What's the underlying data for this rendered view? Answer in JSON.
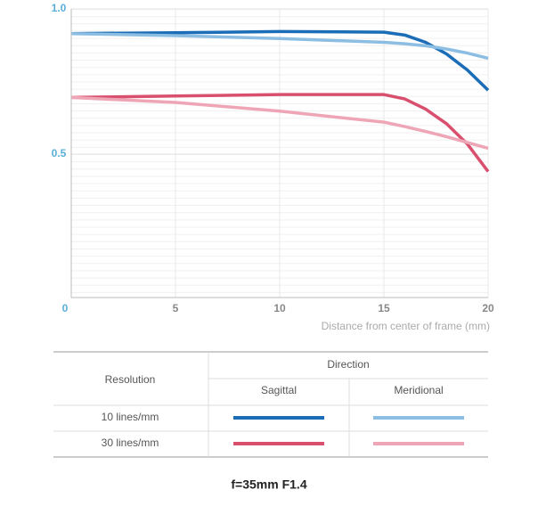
{
  "chart_data": {
    "type": "line",
    "x": [
      0,
      5,
      10,
      15,
      16,
      17,
      18,
      19,
      20
    ],
    "xlim": [
      0,
      20
    ],
    "xticks": [
      0,
      5,
      10,
      15,
      20
    ],
    "ylim": [
      0,
      1
    ],
    "yticks": [
      {
        "value": 1,
        "label": "1.0"
      },
      0.5
    ],
    "x_label": "Distance from center of frame (mm)",
    "grid": true,
    "series": [
      {
        "color": "#1a6db6",
        "values": [
          0.915,
          0.918,
          0.922,
          0.92,
          0.91,
          0.885,
          0.845,
          0.79,
          0.72
        ]
      },
      {
        "color": "#8cbde2",
        "values": [
          0.915,
          0.908,
          0.898,
          0.885,
          0.88,
          0.873,
          0.862,
          0.848,
          0.83
        ]
      },
      {
        "color": "#d9506f",
        "values": [
          0.695,
          0.7,
          0.705,
          0.705,
          0.69,
          0.655,
          0.605,
          0.535,
          0.44
        ]
      },
      {
        "color": "#eea6b6",
        "values": [
          0.695,
          0.678,
          0.648,
          0.61,
          0.595,
          0.578,
          0.56,
          0.54,
          0.52
        ]
      }
    ]
  },
  "table": {
    "row_header": "Resolution",
    "column_group": "Direction",
    "columns": [
      "Sagittal",
      "Meridional"
    ],
    "rows": [
      "10 lines/mm",
      "30 lines/mm"
    ]
  },
  "caption": "f=35mm F1.4"
}
